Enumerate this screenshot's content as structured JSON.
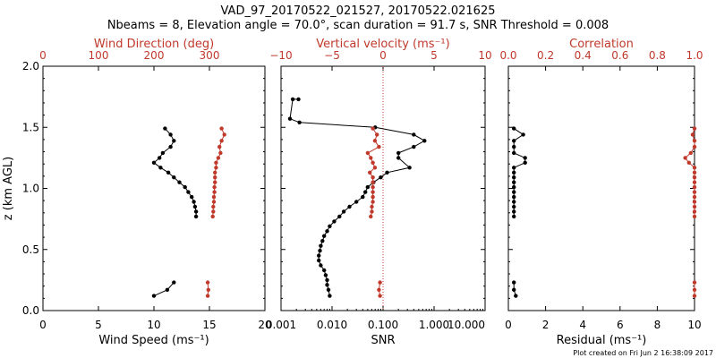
{
  "header": {
    "title": "VAD_97_20170522_021527, 20170522.021625",
    "subtitle": "Nbeams = 8, Elevation angle = 70.0°, scan duration = 91.7 s, SNR Threshold = 0.008"
  },
  "footer": {
    "text": "Plot created on Fri Jun  2 16:38:09 2017"
  },
  "colors": {
    "red": "#c0392b",
    "black": "#000000"
  },
  "chart_data": [
    {
      "type": "scatter",
      "ylabel": "z (km AGL)",
      "ylim": [
        0,
        2.0
      ],
      "yticks": [
        "0.0",
        "0.5",
        "1.0",
        "1.5",
        "2.0"
      ],
      "bottom_axis": {
        "label": "Wind Speed (ms⁻¹)",
        "range": [
          0,
          20
        ],
        "ticks": [
          "0",
          "5",
          "10",
          "15",
          "20"
        ]
      },
      "top_axis": {
        "label": "Wind Direction (deg)",
        "range": [
          0,
          400
        ],
        "ticks": [
          "0",
          "100",
          "200",
          "300"
        ],
        "color": "red"
      },
      "series": [
        {
          "axis": "bottom",
          "color": "black",
          "points": [
            [
              11.0,
              1.49
            ],
            [
              11.5,
              1.44
            ],
            [
              11.8,
              1.39
            ],
            [
              11.5,
              1.34
            ],
            [
              10.8,
              1.29
            ],
            [
              10.5,
              1.25
            ],
            [
              10.0,
              1.21
            ],
            [
              10.6,
              1.17
            ],
            [
              11.3,
              1.13
            ],
            [
              11.8,
              1.09
            ],
            [
              12.3,
              1.05
            ],
            [
              12.8,
              1.01
            ],
            [
              13.1,
              0.97
            ],
            [
              13.4,
              0.93
            ],
            [
              13.6,
              0.89
            ],
            [
              13.7,
              0.85
            ],
            [
              13.8,
              0.81
            ],
            [
              13.8,
              0.77
            ]
          ]
        },
        {
          "axis": "bottom",
          "color": "black",
          "points": [
            [
              10.0,
              0.12
            ],
            [
              11.2,
              0.17
            ],
            [
              11.8,
              0.23
            ]
          ]
        },
        {
          "axis": "top",
          "color": "red",
          "points": [
            [
              322,
              1.49
            ],
            [
              327,
              1.44
            ],
            [
              322,
              1.39
            ],
            [
              318,
              1.34
            ],
            [
              320,
              1.29
            ],
            [
              316,
              1.25
            ],
            [
              312,
              1.21
            ],
            [
              312,
              1.17
            ],
            [
              310,
              1.13
            ],
            [
              310,
              1.09
            ],
            [
              310,
              1.05
            ],
            [
              309,
              1.01
            ],
            [
              309,
              0.97
            ],
            [
              308,
              0.93
            ],
            [
              308,
              0.89
            ],
            [
              307,
              0.85
            ],
            [
              307,
              0.81
            ],
            [
              306,
              0.77
            ]
          ]
        },
        {
          "axis": "top",
          "color": "red",
          "points": [
            [
              297,
              0.12
            ],
            [
              298,
              0.17
            ],
            [
              297,
              0.23
            ]
          ]
        }
      ]
    },
    {
      "type": "scatter",
      "ylim": [
        0,
        2.0
      ],
      "bottom_axis": {
        "label": "SNR",
        "range": [
          0.001,
          10
        ],
        "scale": "log",
        "ticks": [
          "0.001",
          "0.010",
          "0.100",
          "1.000",
          "10.000"
        ]
      },
      "top_axis": {
        "label": "Vertical velocity (ms⁻¹)",
        "range": [
          -10,
          10
        ],
        "ticks": [
          "−10",
          "−5",
          "0",
          "5",
          "10"
        ],
        "color": "red"
      },
      "reference_line": {
        "axis": "top",
        "value": 0,
        "style": "dotted",
        "color": "red"
      },
      "series": [
        {
          "axis": "bottom",
          "color": "black",
          "points": [
            [
              0.0022,
              1.73
            ],
            [
              0.0017,
              1.73
            ],
            [
              0.0015,
              1.57
            ],
            [
              0.0023,
              1.54
            ],
            [
              0.07,
              1.5
            ],
            [
              0.4,
              1.44
            ],
            [
              0.65,
              1.39
            ],
            [
              0.4,
              1.34
            ],
            [
              0.2,
              1.29
            ],
            [
              0.2,
              1.25
            ],
            [
              0.33,
              1.17
            ],
            [
              0.12,
              1.13
            ],
            [
              0.09,
              1.09
            ],
            [
              0.065,
              1.05
            ],
            [
              0.05,
              1.01
            ],
            [
              0.045,
              0.97
            ],
            [
              0.04,
              0.93
            ],
            [
              0.03,
              0.89
            ],
            [
              0.022,
              0.85
            ],
            [
              0.017,
              0.81
            ],
            [
              0.014,
              0.77
            ],
            [
              0.011,
              0.73
            ],
            [
              0.009,
              0.69
            ],
            [
              0.008,
              0.65
            ],
            [
              0.007,
              0.61
            ],
            [
              0.0065,
              0.57
            ],
            [
              0.006,
              0.53
            ],
            [
              0.0058,
              0.49
            ],
            [
              0.0055,
              0.45
            ],
            [
              0.0055,
              0.41
            ],
            [
              0.006,
              0.37
            ],
            [
              0.007,
              0.33
            ],
            [
              0.0075,
              0.29
            ],
            [
              0.008,
              0.25
            ],
            [
              0.008,
              0.21
            ],
            [
              0.0085,
              0.17
            ],
            [
              0.009,
              0.12
            ]
          ]
        },
        {
          "axis": "top",
          "color": "red",
          "points": [
            [
              -1.0,
              1.49
            ],
            [
              -0.6,
              1.44
            ],
            [
              -0.8,
              1.39
            ],
            [
              -0.4,
              1.34
            ],
            [
              -1.5,
              1.29
            ],
            [
              -1.2,
              1.25
            ],
            [
              -1.0,
              1.21
            ],
            [
              -0.8,
              1.17
            ],
            [
              -1.3,
              1.13
            ],
            [
              -1.0,
              1.09
            ],
            [
              -1.0,
              1.05
            ],
            [
              -1.0,
              1.01
            ],
            [
              -1.0,
              0.97
            ],
            [
              -1.0,
              0.93
            ],
            [
              -1.0,
              0.89
            ],
            [
              -1.1,
              0.85
            ],
            [
              -1.1,
              0.81
            ],
            [
              -1.2,
              0.77
            ]
          ]
        },
        {
          "axis": "top",
          "color": "red",
          "points": [
            [
              -0.3,
              0.12
            ],
            [
              -0.4,
              0.17
            ],
            [
              -0.3,
              0.23
            ]
          ]
        }
      ]
    },
    {
      "type": "scatter",
      "ylim": [
        0,
        2.0
      ],
      "bottom_axis": {
        "label": "Residual (ms⁻¹)",
        "range": [
          0,
          10
        ],
        "ticks": [
          "0",
          "2",
          "4",
          "6",
          "8",
          "10"
        ]
      },
      "top_axis": {
        "label": "Correlation",
        "range": [
          0,
          1.0
        ],
        "ticks": [
          "0.0",
          "0.2",
          "0.4",
          "0.6",
          "0.8",
          "1.0"
        ],
        "color": "red"
      },
      "series": [
        {
          "axis": "bottom",
          "color": "black",
          "points": [
            [
              0.3,
              1.49
            ],
            [
              0.8,
              1.44
            ],
            [
              0.3,
              1.39
            ],
            [
              0.3,
              1.34
            ],
            [
              0.3,
              1.29
            ],
            [
              0.9,
              1.25
            ],
            [
              0.9,
              1.21
            ],
            [
              0.3,
              1.17
            ],
            [
              0.3,
              1.13
            ],
            [
              0.3,
              1.09
            ],
            [
              0.3,
              1.05
            ],
            [
              0.3,
              1.01
            ],
            [
              0.3,
              0.97
            ],
            [
              0.3,
              0.93
            ],
            [
              0.3,
              0.89
            ],
            [
              0.3,
              0.85
            ],
            [
              0.3,
              0.81
            ],
            [
              0.3,
              0.77
            ]
          ]
        },
        {
          "axis": "bottom",
          "color": "black",
          "points": [
            [
              0.4,
              0.12
            ],
            [
              0.3,
              0.17
            ],
            [
              0.3,
              0.23
            ]
          ]
        },
        {
          "axis": "top",
          "color": "red",
          "points": [
            [
              1.0,
              1.49
            ],
            [
              0.99,
              1.44
            ],
            [
              1.0,
              1.39
            ],
            [
              1.0,
              1.34
            ],
            [
              0.98,
              1.29
            ],
            [
              0.95,
              1.25
            ],
            [
              0.97,
              1.21
            ],
            [
              1.0,
              1.17
            ],
            [
              1.0,
              1.13
            ],
            [
              1.0,
              1.09
            ],
            [
              1.0,
              1.05
            ],
            [
              1.0,
              1.01
            ],
            [
              1.0,
              0.97
            ],
            [
              1.0,
              0.93
            ],
            [
              1.0,
              0.89
            ],
            [
              1.0,
              0.85
            ],
            [
              1.0,
              0.81
            ],
            [
              1.0,
              0.77
            ]
          ]
        },
        {
          "axis": "top",
          "color": "red",
          "points": [
            [
              1.0,
              0.12
            ],
            [
              1.0,
              0.17
            ],
            [
              1.0,
              0.23
            ]
          ]
        }
      ]
    }
  ]
}
